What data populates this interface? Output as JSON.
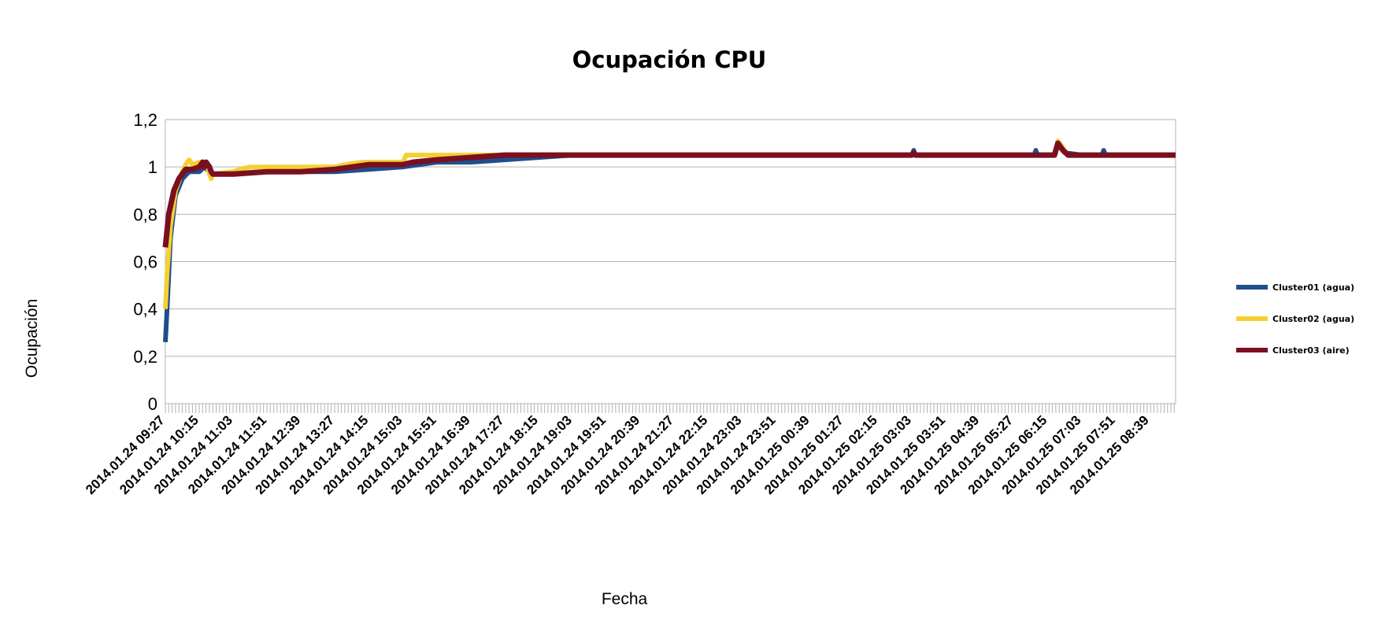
{
  "chart_data": {
    "type": "line",
    "title": "Ocupación CPU",
    "xlabel": "Fecha",
    "ylabel": "Ocupación",
    "ylim": [
      0,
      1.2
    ],
    "y_ticks": [
      "0",
      "0,2",
      "0,4",
      "0,6",
      "0,8",
      "1",
      "1,2"
    ],
    "grid": true,
    "legend_position": "right",
    "x_tick_labels": [
      "2014.01.24 09:27",
      "2014.01.24 10:15",
      "2014.01.24 11:03",
      "2014.01.24 11:51",
      "2014.01.24 12:39",
      "2014.01.24 13:27",
      "2014.01.24 14:15",
      "2014.01.24 15:03",
      "2014.01.24 15:51",
      "2014.01.24 16:39",
      "2014.01.24 17:27",
      "2014.01.24 18:15",
      "2014.01.24 19:03",
      "2014.01.24 19:51",
      "2014.01.24 20:39",
      "2014.01.24 21:27",
      "2014.01.24 22:15",
      "2014.01.24 23:03",
      "2014.01.24 23:51",
      "2014.01.25 00:39",
      "2014.01.25 01:27",
      "2014.01.25 02:15",
      "2014.01.25 03:03",
      "2014.01.25 03:51",
      "2014.01.25 04:39",
      "2014.01.25 05:27",
      "2014.01.25 06:15",
      "2014.01.25 07:03",
      "2014.01.25 07:51",
      "2014.01.25 08:39"
    ],
    "series": [
      {
        "name": "Cluster01 (agua)",
        "color": "#1f4e8c",
        "points": [
          [
            0,
            0.26
          ],
          [
            0.05,
            0.4
          ],
          [
            0.15,
            0.7
          ],
          [
            0.3,
            0.88
          ],
          [
            0.5,
            0.95
          ],
          [
            0.7,
            0.98
          ],
          [
            1.0,
            0.98
          ],
          [
            1.15,
            1.0
          ],
          [
            1.3,
            0.98
          ],
          [
            1.35,
            0.96
          ],
          [
            1.4,
            0.97
          ],
          [
            2.0,
            0.97
          ],
          [
            3.0,
            0.98
          ],
          [
            4.0,
            0.98
          ],
          [
            5.0,
            0.98
          ],
          [
            6.0,
            0.99
          ],
          [
            7.0,
            1.0
          ],
          [
            7.5,
            1.01
          ],
          [
            8.0,
            1.02
          ],
          [
            9.0,
            1.02
          ],
          [
            10.0,
            1.03
          ],
          [
            11.0,
            1.04
          ],
          [
            12.0,
            1.05
          ],
          [
            22.0,
            1.05
          ],
          [
            22.05,
            1.07
          ],
          [
            22.1,
            1.05
          ],
          [
            25.6,
            1.05
          ],
          [
            25.65,
            1.07
          ],
          [
            25.7,
            1.05
          ],
          [
            26.2,
            1.05
          ],
          [
            26.3,
            1.1
          ],
          [
            26.5,
            1.06
          ],
          [
            27.0,
            1.05
          ],
          [
            27.6,
            1.05
          ],
          [
            27.65,
            1.07
          ],
          [
            27.7,
            1.05
          ],
          [
            29.95,
            1.05
          ]
        ]
      },
      {
        "name": "Cluster02 (agua)",
        "color": "#f5d033",
        "points": [
          [
            0,
            0.4
          ],
          [
            0.05,
            0.55
          ],
          [
            0.15,
            0.75
          ],
          [
            0.3,
            0.9
          ],
          [
            0.5,
            0.98
          ],
          [
            0.6,
            1.01
          ],
          [
            0.7,
            1.03
          ],
          [
            0.8,
            1.01
          ],
          [
            1.0,
            1.02
          ],
          [
            1.2,
            1.02
          ],
          [
            1.3,
            0.97
          ],
          [
            1.35,
            0.95
          ],
          [
            1.4,
            0.97
          ],
          [
            2.0,
            0.98
          ],
          [
            2.2,
            0.99
          ],
          [
            2.5,
            1.0
          ],
          [
            3.0,
            1.0
          ],
          [
            4.0,
            1.0
          ],
          [
            5.0,
            1.0
          ],
          [
            5.3,
            1.01
          ],
          [
            5.8,
            1.02
          ],
          [
            7.0,
            1.02
          ],
          [
            7.1,
            1.05
          ],
          [
            8.0,
            1.05
          ],
          [
            9.0,
            1.05
          ],
          [
            10.0,
            1.05
          ],
          [
            22.0,
            1.05
          ],
          [
            22.05,
            1.06
          ],
          [
            22.1,
            1.05
          ],
          [
            26.2,
            1.05
          ],
          [
            26.3,
            1.11
          ],
          [
            26.4,
            1.09
          ],
          [
            26.5,
            1.07
          ],
          [
            26.6,
            1.05
          ],
          [
            27.0,
            1.05
          ],
          [
            29.95,
            1.05
          ]
        ]
      },
      {
        "name": "Cluster03 (aire)",
        "color": "#7a0f1f",
        "points": [
          [
            0,
            0.66
          ],
          [
            0.1,
            0.8
          ],
          [
            0.25,
            0.9
          ],
          [
            0.4,
            0.95
          ],
          [
            0.6,
            0.99
          ],
          [
            0.8,
            0.99
          ],
          [
            1.0,
            1.0
          ],
          [
            1.1,
            1.02
          ],
          [
            1.15,
            1.0
          ],
          [
            1.2,
            1.02
          ],
          [
            1.3,
            1.0
          ],
          [
            1.35,
            0.98
          ],
          [
            1.4,
            0.97
          ],
          [
            2.0,
            0.97
          ],
          [
            3.0,
            0.98
          ],
          [
            4.0,
            0.98
          ],
          [
            5.0,
            0.99
          ],
          [
            5.5,
            1.0
          ],
          [
            6.0,
            1.01
          ],
          [
            7.0,
            1.01
          ],
          [
            7.3,
            1.02
          ],
          [
            8.0,
            1.03
          ],
          [
            9.0,
            1.04
          ],
          [
            10.0,
            1.05
          ],
          [
            22.0,
            1.05
          ],
          [
            22.05,
            1.06
          ],
          [
            22.1,
            1.05
          ],
          [
            26.2,
            1.05
          ],
          [
            26.3,
            1.1
          ],
          [
            26.45,
            1.07
          ],
          [
            26.6,
            1.05
          ],
          [
            29.95,
            1.05
          ]
        ]
      }
    ]
  }
}
